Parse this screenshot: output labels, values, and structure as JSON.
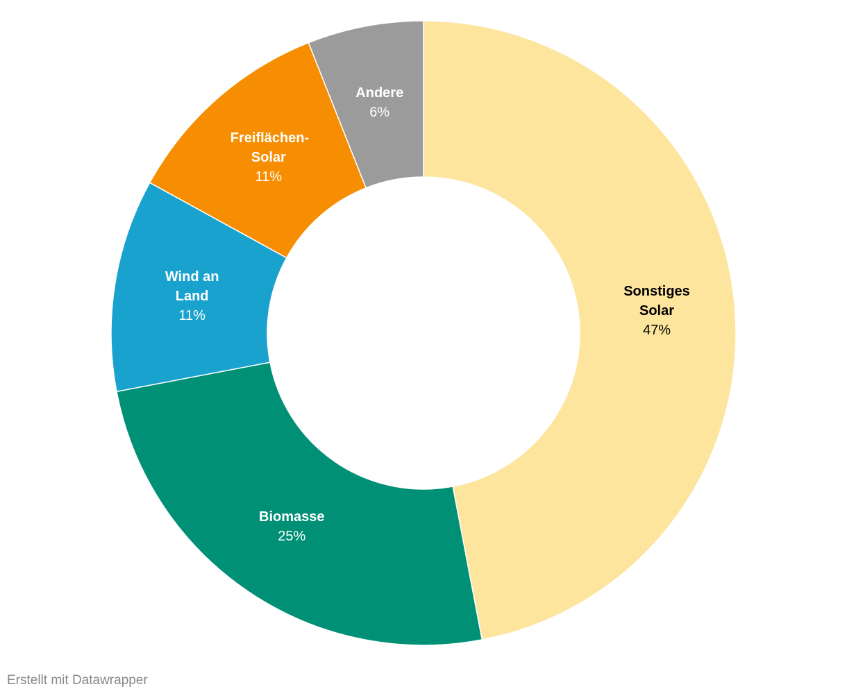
{
  "chart_data": {
    "type": "donut",
    "categories": [
      "Sonstiges Solar",
      "Biomasse",
      "Wind an Land",
      "Freiflächen-Solar",
      "Andere"
    ],
    "values": [
      47,
      25,
      11,
      11,
      6
    ],
    "value_labels": [
      "47%",
      "25%",
      "11%",
      "11%",
      "6%"
    ],
    "colors": [
      "#fde59d",
      "#009075",
      "#1aa2cf",
      "#f78d00",
      "#9b9b9b"
    ],
    "footer": "Erstellt mit Datawrapper"
  }
}
